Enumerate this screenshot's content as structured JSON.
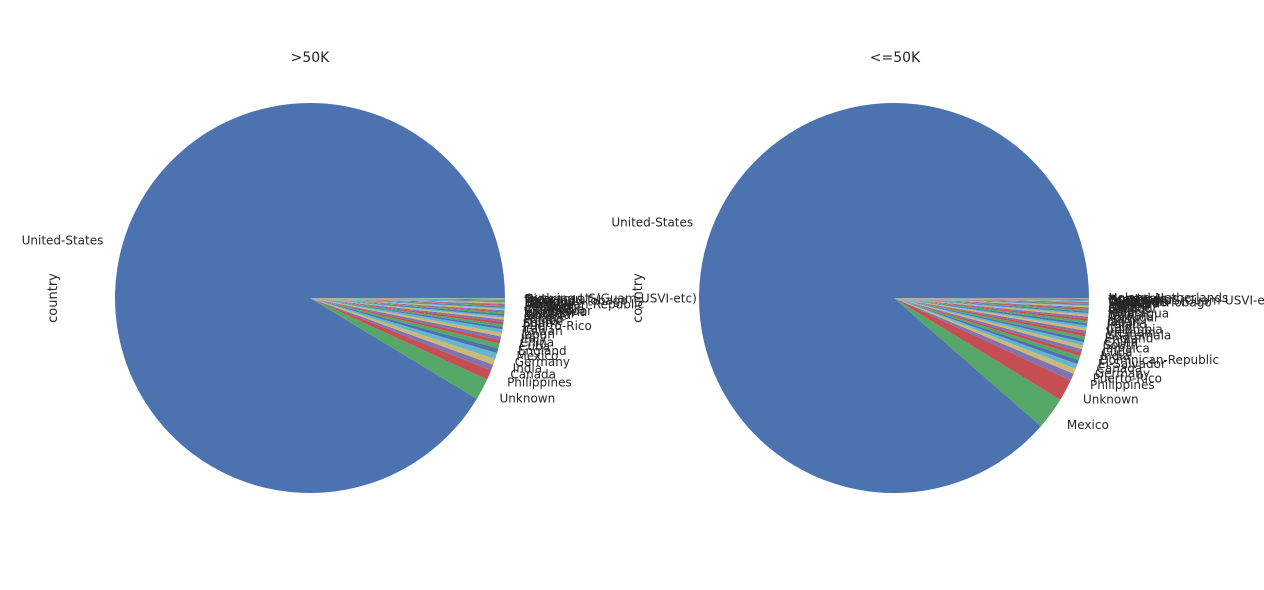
{
  "chart_data": [
    {
      "type": "pie",
      "title": ">50K",
      "ylabel": "country",
      "colors": [
        "#4c72b0",
        "#55a868",
        "#c44e52",
        "#8172b2",
        "#ccb974",
        "#64b5cd"
      ],
      "slices": [
        {
          "label": "United-States",
          "value": 91.5
        },
        {
          "label": "Unknown",
          "value": 1.8
        },
        {
          "label": "Philippines",
          "value": 0.8
        },
        {
          "label": "Canada",
          "value": 0.5
        },
        {
          "label": "India",
          "value": 0.5
        },
        {
          "label": "Germany",
          "value": 0.5
        },
        {
          "label": "Mexico",
          "value": 0.4
        },
        {
          "label": "England",
          "value": 0.4
        },
        {
          "label": "Cuba",
          "value": 0.3
        },
        {
          "label": "China",
          "value": 0.3
        },
        {
          "label": "Italy",
          "value": 0.3
        },
        {
          "label": "Japan",
          "value": 0.3
        },
        {
          "label": "Taiwan",
          "value": 0.2
        },
        {
          "label": "Iran",
          "value": 0.2
        },
        {
          "label": "Puerto-Rico",
          "value": 0.2
        },
        {
          "label": "South",
          "value": 0.2
        },
        {
          "label": "France",
          "value": 0.15
        },
        {
          "label": "Poland",
          "value": 0.15
        },
        {
          "label": "Greece",
          "value": 0.15
        },
        {
          "label": "Jamaica",
          "value": 0.12
        },
        {
          "label": "Vietnam",
          "value": 0.1
        },
        {
          "label": "Yugoslavia",
          "value": 0.1
        },
        {
          "label": "El-Salvador",
          "value": 0.1
        },
        {
          "label": "Cambodia",
          "value": 0.1
        },
        {
          "label": "Ireland",
          "value": 0.1
        },
        {
          "label": "Ecuador",
          "value": 0.08
        },
        {
          "label": "Portugal",
          "value": 0.08
        },
        {
          "label": "Dominican-Republic",
          "value": 0.08
        },
        {
          "label": "Hong",
          "value": 0.08
        },
        {
          "label": "Hungary",
          "value": 0.06
        },
        {
          "label": "Thailand",
          "value": 0.06
        },
        {
          "label": "Haiti",
          "value": 0.06
        },
        {
          "label": "Trinadad&Tobago",
          "value": 0.05
        },
        {
          "label": "Peru",
          "value": 0.05
        },
        {
          "label": "Nicaragua",
          "value": 0.05
        },
        {
          "label": "Outlying-US(Guam-USVI-etc)",
          "value": 0.05
        }
      ]
    },
    {
      "type": "pie",
      "title": "<=50K",
      "ylabel": "country",
      "colors": [
        "#4c72b0",
        "#55a868",
        "#c44e52",
        "#8172b2",
        "#ccb974",
        "#64b5cd"
      ],
      "slices": [
        {
          "label": "United-States",
          "value": 89.2
        },
        {
          "label": "Mexico",
          "value": 2.7
        },
        {
          "label": "Unknown",
          "value": 1.8
        },
        {
          "label": "Philippines",
          "value": 0.6
        },
        {
          "label": "Puerto-Rico",
          "value": 0.45
        },
        {
          "label": "Germany",
          "value": 0.4
        },
        {
          "label": "Canada",
          "value": 0.35
        },
        {
          "label": "El-Salvador",
          "value": 0.35
        },
        {
          "label": "Dominican-Republic",
          "value": 0.3
        },
        {
          "label": "India",
          "value": 0.3
        },
        {
          "label": "Cuba",
          "value": 0.3
        },
        {
          "label": "Jamaica",
          "value": 0.28
        },
        {
          "label": "South",
          "value": 0.25
        },
        {
          "label": "China",
          "value": 0.25
        },
        {
          "label": "England",
          "value": 0.25
        },
        {
          "label": "Guatemala",
          "value": 0.22
        },
        {
          "label": "Vietnam",
          "value": 0.22
        },
        {
          "label": "Columbia",
          "value": 0.2
        },
        {
          "label": "Italy",
          "value": 0.2
        },
        {
          "label": "Poland",
          "value": 0.2
        },
        {
          "label": "Japan",
          "value": 0.18
        },
        {
          "label": "Haiti",
          "value": 0.17
        },
        {
          "label": "Portugal",
          "value": 0.15
        },
        {
          "label": "Taiwan",
          "value": 0.15
        },
        {
          "label": "Nicaragua",
          "value": 0.12
        },
        {
          "label": "Peru",
          "value": 0.12
        },
        {
          "label": "Iran",
          "value": 0.12
        },
        {
          "label": "Ecuador",
          "value": 0.1
        },
        {
          "label": "Greece",
          "value": 0.1
        },
        {
          "label": "France",
          "value": 0.08
        },
        {
          "label": "Ireland",
          "value": 0.08
        },
        {
          "label": "Hong",
          "value": 0.07
        },
        {
          "label": "Thailand",
          "value": 0.06
        },
        {
          "label": "Trinadad&Tobago",
          "value": 0.06
        },
        {
          "label": "Cambodia",
          "value": 0.05
        },
        {
          "label": "Laos",
          "value": 0.05
        },
        {
          "label": "Outlying-US(Guam-USVI-etc)",
          "value": 0.05
        },
        {
          "label": "Yugoslavia",
          "value": 0.04
        },
        {
          "label": "Scotland",
          "value": 0.04
        },
        {
          "label": "Honduras",
          "value": 0.04
        },
        {
          "label": "Hungary",
          "value": 0.04
        },
        {
          "label": "Holand-Netherlands",
          "value": 0.01
        }
      ]
    }
  ]
}
